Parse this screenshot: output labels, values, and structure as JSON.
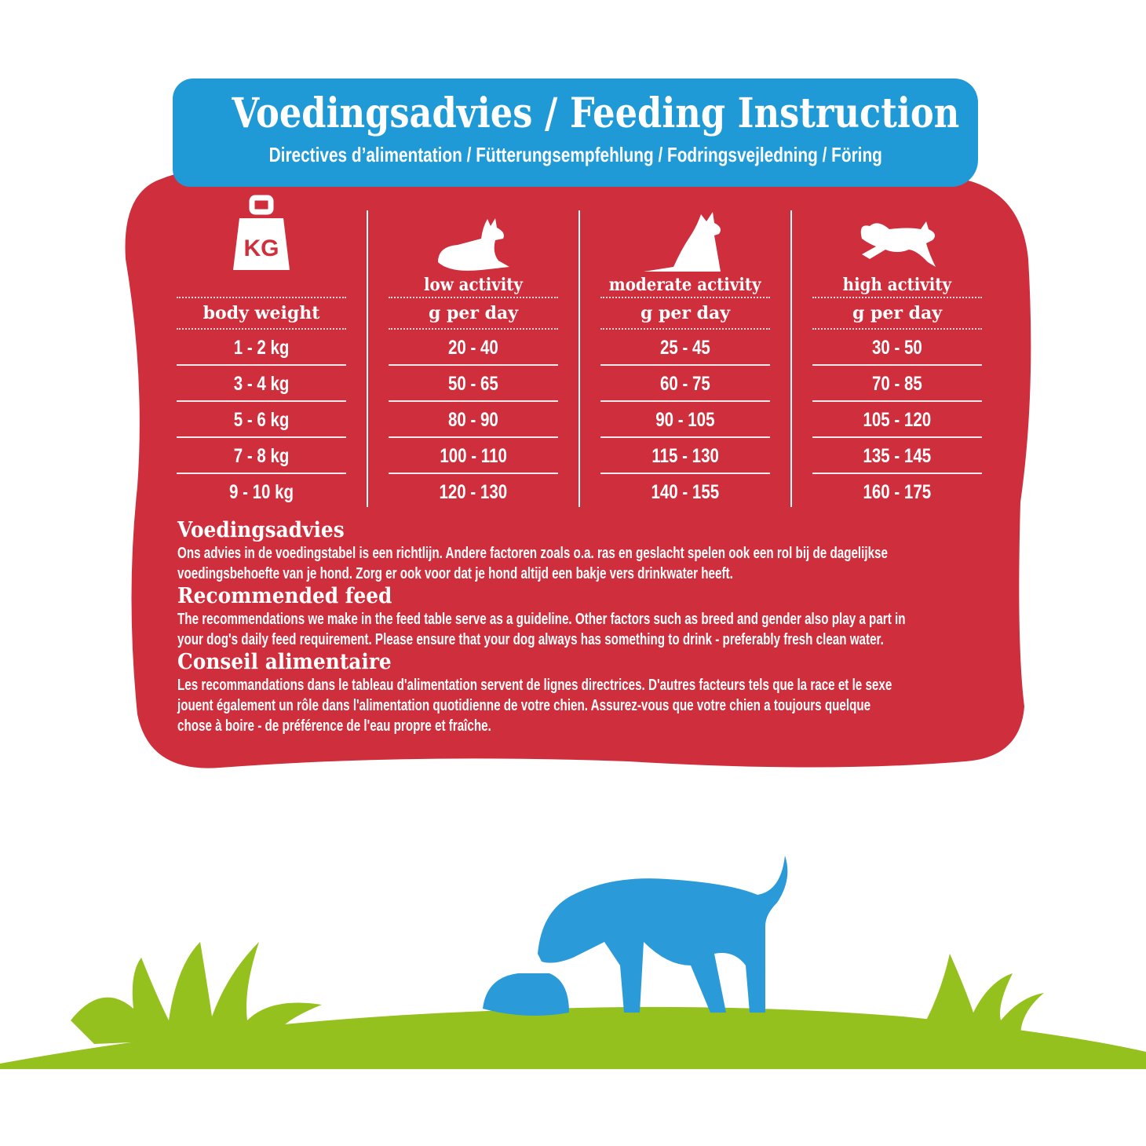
{
  "colors": {
    "panel": "#cf2e3c",
    "header": "#1f9ad6",
    "grass": "#95c11f",
    "dog": "#2a9ad8"
  },
  "header": {
    "title": "Voedingsadvies / Feeding Instruction",
    "subtitle": "Directives d’alimentation / Fütterungsempfehlung / Fodringsvejledning / Föring"
  },
  "table": {
    "columns": [
      {
        "icon": "kg-weight-icon",
        "icon_text": "KG",
        "label": "",
        "sub": "body weight",
        "values": [
          "1 - 2 kg",
          "3 - 4 kg",
          "5 - 6 kg",
          "7 - 8 kg",
          "9 - 10 kg"
        ]
      },
      {
        "icon": "lying-dog-icon",
        "label": "low activity",
        "sub": "g per day",
        "values": [
          "20 - 40",
          "50 - 65",
          "80 - 90",
          "100 - 110",
          "120 - 130"
        ]
      },
      {
        "icon": "sitting-dog-icon",
        "label": "moderate activity",
        "sub": "g per day",
        "values": [
          "25 - 45",
          "60 - 75",
          "90 - 105",
          "115 - 130",
          "140 - 155"
        ]
      },
      {
        "icon": "running-dog-icon",
        "label": "high activity",
        "sub": "g per day",
        "values": [
          "30 - 50",
          "70 - 85",
          "105 - 120",
          "135 - 145",
          "160 - 175"
        ]
      }
    ]
  },
  "notes": [
    {
      "heading": "Voedingsadvies",
      "lines": [
        "Ons advies in de voedingstabel is een richtlijn. Andere factoren zoals o.a. ras en geslacht spelen ook een rol bij de dagelijkse",
        "voedingsbehoefte van je hond. Zorg er ook voor dat je hond altijd een bakje vers drinkwater heeft."
      ]
    },
    {
      "heading": "Recommended feed",
      "lines": [
        "The recommendations we make in the feed table serve as a guideline. Other factors such as breed and gender also play a part in",
        "your dog's daily feed requirement. Please ensure that your dog always has something to drink - preferably fresh clean water."
      ]
    },
    {
      "heading": "Conseil alimentaire",
      "lines": [
        "Les recommandations dans le tableau d'alimentation servent de lignes directrices. D'autres facteurs tels que la race et le sexe",
        "jouent également un rôle dans l'alimentation quotidienne de votre chien. Assurez-vous que votre chien a toujours quelque",
        "chose à boire - de préférence de l'eau propre et fraîche."
      ]
    }
  ],
  "illustration": {
    "icon": "dog-eating-from-bowl-illustration"
  }
}
